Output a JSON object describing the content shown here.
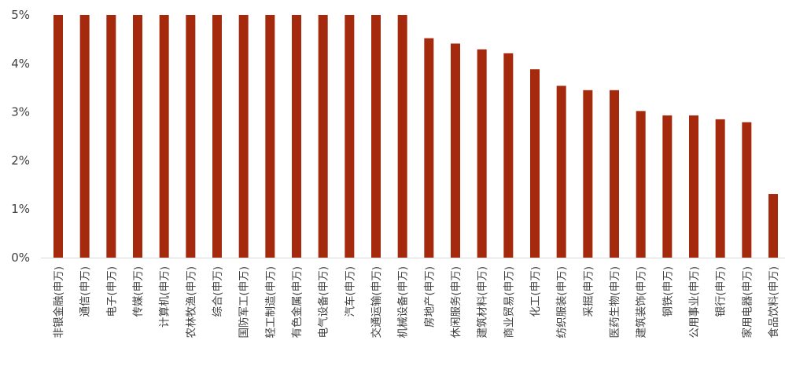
{
  "chart_data": {
    "type": "bar",
    "title": "",
    "xlabel": "",
    "ylabel": "",
    "ylim": [
      0,
      5
    ],
    "y_ticks": [
      "0%",
      "1%",
      "2%",
      "3%",
      "4%",
      "5%"
    ],
    "grid": false,
    "legend": "none",
    "bar_color": "#a52a0d",
    "axis_color": "#d9d9d9",
    "categories": [
      "非银金融(申万)",
      "通信(申万)",
      "电子(申万)",
      "传媒(申万)",
      "计算机(申万)",
      "农林牧渔(申万)",
      "综合(申万)",
      "国防军工(申万)",
      "轻工制造(申万)",
      "有色金属(申万)",
      "电气设备(申万)",
      "汽车(申万)",
      "交通运输(申万)",
      "机械设备(申万)",
      "房地产(申万)",
      "休闲服务(申万)",
      "建筑材料(申万)",
      "商业贸易(申万)",
      "化工(申万)",
      "纺织服装(申万)",
      "采掘(申万)",
      "医药生物(申万)",
      "建筑装饰(申万)",
      "钢铁(申万)",
      "公用事业(申万)",
      "银行(申万)",
      "家用电器(申万)",
      "食品饮料(申万)"
    ],
    "values": [
      5.0,
      5.0,
      5.0,
      5.0,
      5.0,
      5.0,
      5.0,
      5.0,
      5.0,
      5.0,
      5.0,
      5.0,
      5.0,
      5.0,
      4.52,
      4.41,
      4.29,
      4.21,
      3.88,
      3.54,
      3.45,
      3.45,
      3.02,
      2.93,
      2.93,
      2.85,
      2.79,
      1.31
    ]
  }
}
